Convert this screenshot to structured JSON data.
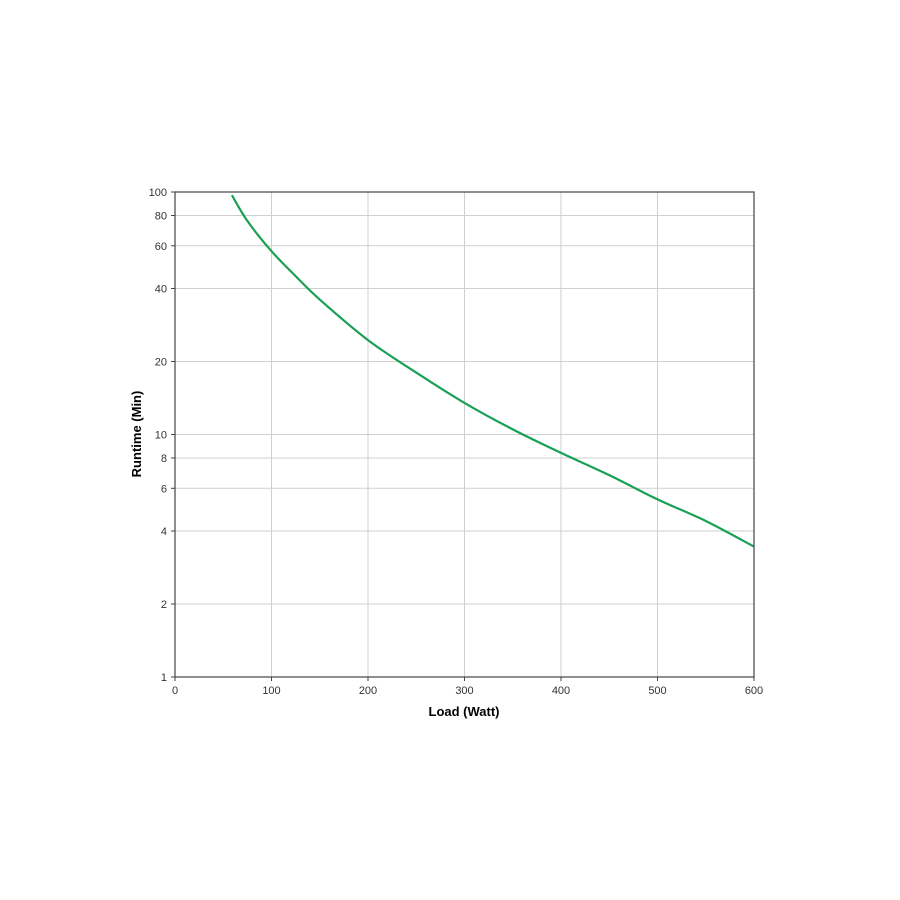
{
  "chart_data": {
    "type": "line",
    "title": "",
    "xlabel": "Load (Watt)",
    "ylabel": "Runtime (Min)",
    "xlim": [
      0,
      600
    ],
    "ylim": [
      1,
      100
    ],
    "yscale": "log",
    "grid": true,
    "x_ticks": [
      "0",
      "100",
      "200",
      "300",
      "400",
      "500",
      "600"
    ],
    "y_ticks": [
      "1",
      "2",
      "4",
      "6",
      "8",
      "10",
      "20",
      "40",
      "60",
      "80",
      "100"
    ],
    "series": [
      {
        "color": "#1aa055",
        "x": [
          59,
          75,
          100,
          125,
          150,
          200,
          250,
          300,
          350,
          400,
          450,
          500,
          550,
          600
        ],
        "y": [
          97,
          76,
          57,
          45,
          36,
          24.5,
          18,
          13.5,
          10.5,
          8.4,
          6.8,
          5.4,
          4.4,
          3.45
        ]
      }
    ]
  }
}
